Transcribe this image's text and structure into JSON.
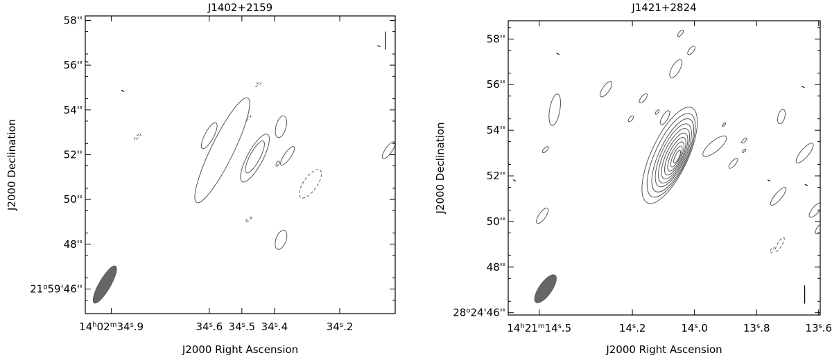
{
  "chart_data": [
    {
      "type": "contour",
      "title": "J1402+2159",
      "xlabel": "J2000 Right Ascension",
      "ylabel": "J2000 Declination",
      "xlim": [
        34.98,
        34.03
      ],
      "ylim": [
        44.9,
        58.2
      ],
      "x_ticks": [
        {
          "value": 34.9,
          "label": "14h02m34s.9"
        },
        {
          "value": 34.6,
          "label": "34s.6"
        },
        {
          "value": 34.5,
          "label": "34s.5"
        },
        {
          "value": 34.4,
          "label": "34s.4"
        },
        {
          "value": 34.2,
          "label": "34s.2"
        }
      ],
      "y_ticks": [
        {
          "value": 58,
          "label": "58''"
        },
        {
          "value": 56,
          "label": "56''"
        },
        {
          "value": 54,
          "label": "54''"
        },
        {
          "value": 52,
          "label": "52''"
        },
        {
          "value": 50,
          "label": "50''"
        },
        {
          "value": 48,
          "label": "48''"
        },
        {
          "value": 46,
          "label": "21°59'46''"
        }
      ],
      "beam": {
        "ra": 34.92,
        "dec": 46.2,
        "major": 1.9,
        "minor": 0.5,
        "pa_deg": 60
      },
      "contours": [
        {
          "level": "pos",
          "ra": 34.56,
          "dec": 52.2,
          "major": 5.2,
          "minor": 1.0,
          "pa_deg": 64
        },
        {
          "level": "pos",
          "ra": 34.6,
          "dec": 52.85,
          "major": 1.3,
          "minor": 0.4,
          "pa_deg": 62
        },
        {
          "level": "pos",
          "ra": 34.46,
          "dec": 51.85,
          "major": 2.4,
          "minor": 0.7,
          "pa_deg": 62
        },
        {
          "level": "pos",
          "ra": 34.46,
          "dec": 51.9,
          "major": 1.6,
          "minor": 0.45,
          "pa_deg": 62
        },
        {
          "level": "pos",
          "ra": 34.38,
          "dec": 53.25,
          "major": 1.0,
          "minor": 0.45,
          "pa_deg": 75
        },
        {
          "level": "pos",
          "ra": 34.36,
          "dec": 51.95,
          "major": 1.0,
          "minor": 0.3,
          "pa_deg": 55
        },
        {
          "level": "pos",
          "ra": 34.38,
          "dec": 48.2,
          "major": 0.9,
          "minor": 0.45,
          "pa_deg": 70
        },
        {
          "level": "pos",
          "ra": 34.05,
          "dec": 52.2,
          "major": 0.9,
          "minor": 0.3,
          "pa_deg": 55
        },
        {
          "level": "pos",
          "ra": 34.39,
          "dec": 51.6,
          "major": 0.25,
          "minor": 0.12,
          "pa_deg": 60
        },
        {
          "level": "neg",
          "ra": 34.29,
          "dec": 50.7,
          "major": 1.5,
          "minor": 0.6,
          "pa_deg": 55
        },
        {
          "level": "neg",
          "ra": 34.48,
          "dec": 53.65,
          "major": 0.3,
          "minor": 0.1,
          "pa_deg": 45
        },
        {
          "level": "neg",
          "ra": 34.82,
          "dec": 52.8,
          "major": 0.4,
          "minor": 0.1,
          "pa_deg": 45
        },
        {
          "level": "neg",
          "ra": 34.45,
          "dec": 55.15,
          "major": 0.3,
          "minor": 0.1,
          "pa_deg": 35
        },
        {
          "level": "neg",
          "ra": 34.48,
          "dec": 49.1,
          "major": 0.35,
          "minor": 0.1,
          "pa_deg": 40
        }
      ],
      "noise_marks": [
        {
          "ra": 34.865,
          "dec": 54.85
        },
        {
          "ra": 34.08,
          "dec": 56.85
        },
        {
          "ra": 34.975,
          "dec": 56.15
        }
      ],
      "bar_marks": [
        {
          "ra": 34.06,
          "dec": 57.1,
          "length": 0.4
        }
      ]
    },
    {
      "type": "contour",
      "title": "J1421+2824",
      "xlabel": "J2000 Right Ascension",
      "ylabel": "J2000 Declination",
      "xlim": [
        14.6,
        13.595
      ],
      "ylim": [
        45.9,
        58.8
      ],
      "x_ticks": [
        {
          "value": 14.5,
          "label": "14h21m14s.5"
        },
        {
          "value": 14.2,
          "label": "14s.2"
        },
        {
          "value": 14.0,
          "label": "14s.0"
        },
        {
          "value": 13.8,
          "label": "13s.8"
        },
        {
          "value": 13.6,
          "label": "13s.6"
        }
      ],
      "y_ticks": [
        {
          "value": 58,
          "label": "58''"
        },
        {
          "value": 56,
          "label": "56''"
        },
        {
          "value": 54,
          "label": "54''"
        },
        {
          "value": 52,
          "label": "52''"
        },
        {
          "value": 50,
          "label": "50''"
        },
        {
          "value": 48,
          "label": "48''"
        },
        {
          "value": 46,
          "label": "28°24'46''"
        }
      ],
      "beam": {
        "ra": 14.48,
        "dec": 47.05,
        "major": 1.45,
        "minor": 0.55,
        "pa_deg": 55
      },
      "contours": [
        {
          "level": "pos",
          "ra": 14.08,
          "dec": 52.9,
          "major": 4.6,
          "minor": 1.6,
          "pa_deg": 65
        },
        {
          "level": "pos",
          "ra": 14.075,
          "dec": 52.9,
          "major": 4.0,
          "minor": 1.4,
          "pa_deg": 65
        },
        {
          "level": "pos",
          "ra": 14.07,
          "dec": 52.9,
          "major": 3.5,
          "minor": 1.2,
          "pa_deg": 65
        },
        {
          "level": "pos",
          "ra": 14.068,
          "dec": 52.9,
          "major": 3.0,
          "minor": 1.05,
          "pa_deg": 65
        },
        {
          "level": "pos",
          "ra": 14.066,
          "dec": 52.88,
          "major": 2.6,
          "minor": 0.9,
          "pa_deg": 65
        },
        {
          "level": "pos",
          "ra": 14.064,
          "dec": 52.87,
          "major": 2.2,
          "minor": 0.75,
          "pa_deg": 65
        },
        {
          "level": "pos",
          "ra": 14.062,
          "dec": 52.86,
          "major": 1.8,
          "minor": 0.6,
          "pa_deg": 65
        },
        {
          "level": "pos",
          "ra": 14.06,
          "dec": 52.85,
          "major": 1.4,
          "minor": 0.45,
          "pa_deg": 65
        },
        {
          "level": "pos",
          "ra": 14.058,
          "dec": 52.85,
          "major": 1.0,
          "minor": 0.3,
          "pa_deg": 65
        },
        {
          "level": "pos",
          "ra": 14.056,
          "dec": 52.84,
          "major": 0.6,
          "minor": 0.18,
          "pa_deg": 65
        },
        {
          "level": "pos",
          "ra": 13.935,
          "dec": 53.3,
          "major": 1.3,
          "minor": 0.45,
          "pa_deg": 40
        },
        {
          "level": "pos",
          "ra": 14.45,
          "dec": 54.9,
          "major": 1.4,
          "minor": 0.45,
          "pa_deg": 80
        },
        {
          "level": "pos",
          "ra": 14.06,
          "dec": 56.7,
          "major": 0.9,
          "minor": 0.35,
          "pa_deg": 60
        },
        {
          "level": "pos",
          "ra": 14.285,
          "dec": 55.8,
          "major": 0.8,
          "minor": 0.3,
          "pa_deg": 55
        },
        {
          "level": "pos",
          "ra": 14.165,
          "dec": 55.4,
          "major": 0.5,
          "minor": 0.2,
          "pa_deg": 50
        },
        {
          "level": "pos",
          "ra": 14.095,
          "dec": 54.55,
          "major": 0.7,
          "minor": 0.25,
          "pa_deg": 60
        },
        {
          "level": "pos",
          "ra": 14.01,
          "dec": 57.5,
          "major": 0.45,
          "minor": 0.2,
          "pa_deg": 50
        },
        {
          "level": "pos",
          "ra": 14.045,
          "dec": 58.25,
          "major": 0.35,
          "minor": 0.15,
          "pa_deg": 50
        },
        {
          "level": "pos",
          "ra": 13.72,
          "dec": 54.6,
          "major": 0.65,
          "minor": 0.3,
          "pa_deg": 75
        },
        {
          "level": "pos",
          "ra": 13.645,
          "dec": 53.0,
          "major": 1.1,
          "minor": 0.35,
          "pa_deg": 50
        },
        {
          "level": "pos",
          "ra": 13.875,
          "dec": 52.55,
          "major": 0.55,
          "minor": 0.2,
          "pa_deg": 50
        },
        {
          "level": "pos",
          "ra": 13.73,
          "dec": 51.1,
          "major": 1.0,
          "minor": 0.3,
          "pa_deg": 50
        },
        {
          "level": "pos",
          "ra": 13.61,
          "dec": 50.5,
          "major": 0.8,
          "minor": 0.3,
          "pa_deg": 50
        },
        {
          "level": "pos",
          "ra": 14.49,
          "dec": 50.25,
          "major": 0.8,
          "minor": 0.3,
          "pa_deg": 55
        },
        {
          "level": "pos",
          "ra": 14.48,
          "dec": 53.15,
          "major": 0.35,
          "minor": 0.15,
          "pa_deg": 45
        },
        {
          "level": "pos",
          "ra": 14.205,
          "dec": 54.5,
          "major": 0.3,
          "minor": 0.15,
          "pa_deg": 50
        },
        {
          "level": "pos",
          "ra": 14.12,
          "dec": 54.8,
          "major": 0.25,
          "minor": 0.1,
          "pa_deg": 50
        },
        {
          "level": "pos",
          "ra": 13.84,
          "dec": 53.55,
          "major": 0.3,
          "minor": 0.12,
          "pa_deg": 45
        },
        {
          "level": "pos",
          "ra": 13.84,
          "dec": 53.1,
          "major": 0.2,
          "minor": 0.08,
          "pa_deg": 45
        },
        {
          "level": "pos",
          "ra": 13.905,
          "dec": 54.25,
          "major": 0.2,
          "minor": 0.08,
          "pa_deg": 45
        },
        {
          "level": "pos",
          "ra": 13.595,
          "dec": 49.7,
          "major": 0.6,
          "minor": 0.25,
          "pa_deg": 50
        },
        {
          "level": "neg",
          "ra": 13.725,
          "dec": 49.0,
          "major": 0.7,
          "minor": 0.2,
          "pa_deg": 60
        },
        {
          "level": "neg",
          "ra": 13.75,
          "dec": 48.75,
          "major": 0.3,
          "minor": 0.1,
          "pa_deg": 60
        }
      ],
      "noise_marks": [
        {
          "ra": 14.44,
          "dec": 57.35
        },
        {
          "ra": 14.58,
          "dec": 51.8
        },
        {
          "ra": 13.65,
          "dec": 55.9
        },
        {
          "ra": 13.76,
          "dec": 51.8
        },
        {
          "ra": 13.64,
          "dec": 51.6
        }
      ],
      "bar_marks": [
        {
          "ra": 13.645,
          "dec": 46.8,
          "length": 0.4
        }
      ]
    }
  ]
}
